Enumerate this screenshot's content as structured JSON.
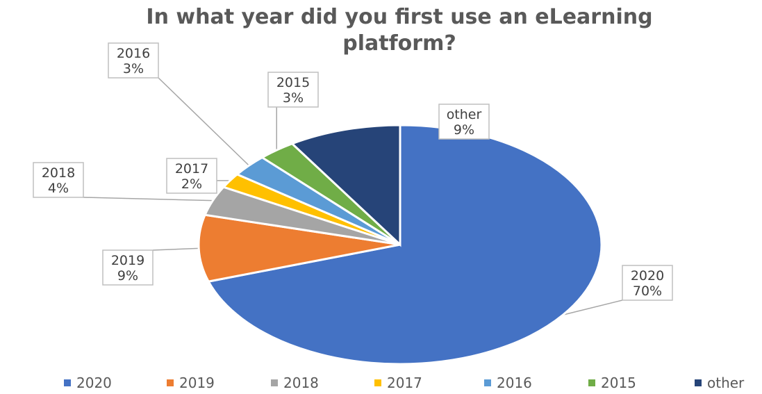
{
  "chart_data": {
    "type": "pie",
    "title": "In what year did you first use an eLearning platform?",
    "title_lines": [
      "In what year did you first use an eLearning",
      "platform?"
    ],
    "slices": [
      {
        "label": "2020",
        "value": 70,
        "value_label": "70%",
        "color": "#4472c4"
      },
      {
        "label": "2019",
        "value": 9,
        "value_label": "9%",
        "color": "#ed7d31"
      },
      {
        "label": "2018",
        "value": 4,
        "value_label": "4%",
        "color": "#a5a5a5"
      },
      {
        "label": "2017",
        "value": 2,
        "value_label": "2%",
        "color": "#ffc000"
      },
      {
        "label": "2016",
        "value": 3,
        "value_label": "3%",
        "color": "#5b9bd5"
      },
      {
        "label": "2015",
        "value": 3,
        "value_label": "3%",
        "color": "#70ad47"
      },
      {
        "label": "other",
        "value": 9,
        "value_label": "9%",
        "color": "#264478"
      }
    ],
    "legend": {
      "position": "bottom"
    },
    "data_labels": "callouts with leader lines"
  }
}
